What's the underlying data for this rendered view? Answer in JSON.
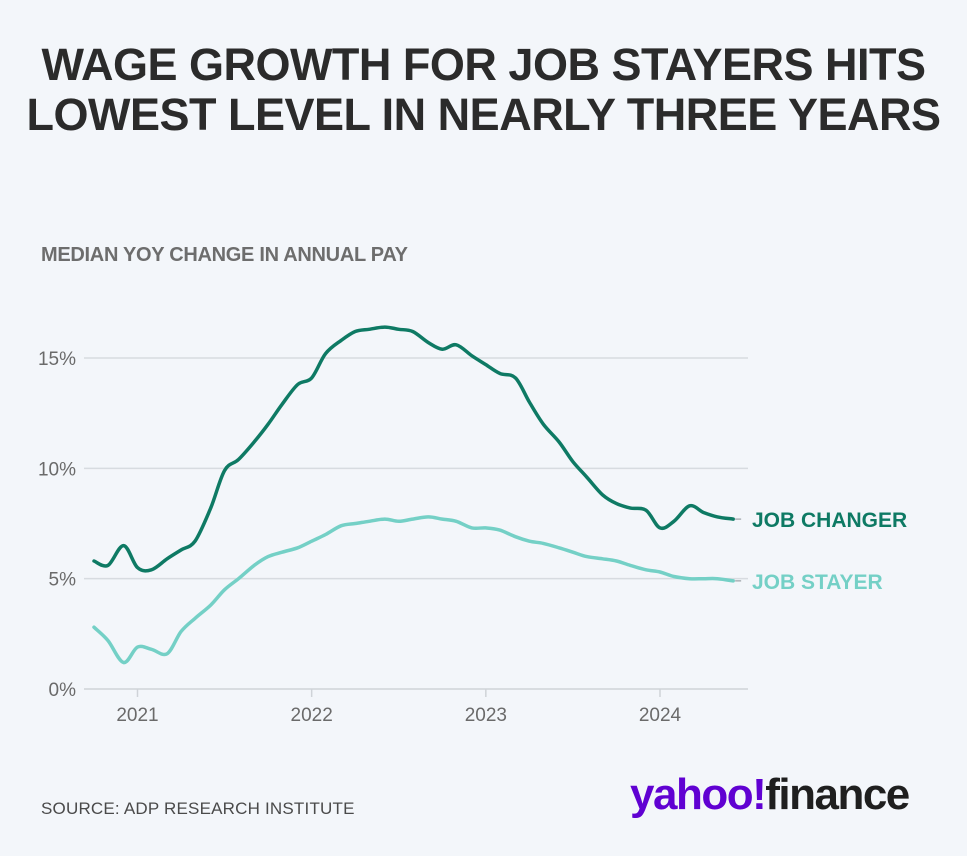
{
  "header": {
    "title": "WAGE GROWTH FOR JOB STAYERS HITS LOWEST LEVEL IN NEARLY THREE YEARS",
    "subtitle": "MEDIAN YOY CHANGE IN ANNUAL PAY"
  },
  "footer": {
    "source": "SOURCE: ADP RESEARCH INSTITUTE",
    "logo_yahoo": "yahoo!",
    "logo_finance": "finance"
  },
  "colors": {
    "job_changer": "#0e7a64",
    "job_stayer": "#74d0c6",
    "grid": "#d7dbe0",
    "title": "#2b2b2b"
  },
  "chart_data": {
    "type": "line",
    "title": "WAGE GROWTH FOR JOB STAYERS HITS LOWEST LEVEL IN NEARLY THREE YEARS",
    "subtitle": "MEDIAN YOY CHANGE IN ANNUAL PAY",
    "xlabel": "",
    "ylabel": "",
    "ylim": [
      0,
      15
    ],
    "xlim": [
      2020.75,
      2024.5
    ],
    "yticks": [
      0,
      5,
      10,
      15
    ],
    "ytick_labels": [
      "0%",
      "5%",
      "10%",
      "15%"
    ],
    "xticks": [
      2021,
      2022,
      2023,
      2024
    ],
    "xtick_labels": [
      "2021",
      "2022",
      "2023",
      "2024"
    ],
    "grid": true,
    "series": [
      {
        "name": "JOB CHANGER",
        "color": "#0e7a64",
        "x": [
          2020.75,
          2020.83,
          2020.92,
          2021.0,
          2021.08,
          2021.17,
          2021.25,
          2021.33,
          2021.42,
          2021.5,
          2021.58,
          2021.67,
          2021.75,
          2021.83,
          2021.92,
          2022.0,
          2022.08,
          2022.17,
          2022.25,
          2022.33,
          2022.42,
          2022.5,
          2022.58,
          2022.67,
          2022.75,
          2022.83,
          2022.92,
          2023.0,
          2023.08,
          2023.17,
          2023.25,
          2023.33,
          2023.42,
          2023.5,
          2023.58,
          2023.67,
          2023.75,
          2023.83,
          2023.92,
          2024.0,
          2024.08,
          2024.17,
          2024.25,
          2024.33,
          2024.42
        ],
        "values": [
          5.8,
          5.6,
          6.5,
          5.5,
          5.4,
          5.9,
          6.3,
          6.7,
          8.2,
          9.9,
          10.4,
          11.2,
          12.0,
          12.9,
          13.8,
          14.1,
          15.2,
          15.8,
          16.2,
          16.3,
          16.4,
          16.3,
          16.2,
          15.7,
          15.4,
          15.6,
          15.1,
          14.7,
          14.3,
          14.1,
          13.0,
          12.0,
          11.2,
          10.3,
          9.6,
          8.8,
          8.4,
          8.2,
          8.1,
          7.3,
          7.6,
          8.3,
          8.0,
          7.8,
          7.7
        ]
      },
      {
        "name": "JOB STAYER",
        "color": "#74d0c6",
        "x": [
          2020.75,
          2020.83,
          2020.92,
          2021.0,
          2021.08,
          2021.17,
          2021.25,
          2021.33,
          2021.42,
          2021.5,
          2021.58,
          2021.67,
          2021.75,
          2021.83,
          2021.92,
          2022.0,
          2022.08,
          2022.17,
          2022.25,
          2022.33,
          2022.42,
          2022.5,
          2022.58,
          2022.67,
          2022.75,
          2022.83,
          2022.92,
          2023.0,
          2023.08,
          2023.17,
          2023.25,
          2023.33,
          2023.42,
          2023.5,
          2023.58,
          2023.67,
          2023.75,
          2023.83,
          2023.92,
          2024.0,
          2024.08,
          2024.17,
          2024.25,
          2024.33,
          2024.42
        ],
        "values": [
          2.8,
          2.2,
          1.2,
          1.9,
          1.8,
          1.6,
          2.6,
          3.2,
          3.8,
          4.5,
          5.0,
          5.6,
          6.0,
          6.2,
          6.4,
          6.7,
          7.0,
          7.4,
          7.5,
          7.6,
          7.7,
          7.6,
          7.7,
          7.8,
          7.7,
          7.6,
          7.3,
          7.3,
          7.2,
          6.9,
          6.7,
          6.6,
          6.4,
          6.2,
          6.0,
          5.9,
          5.8,
          5.6,
          5.4,
          5.3,
          5.1,
          5.0,
          5.0,
          5.0,
          4.9
        ]
      }
    ],
    "series_labels": [
      "JOB CHANGER",
      "JOB STAYER"
    ]
  }
}
